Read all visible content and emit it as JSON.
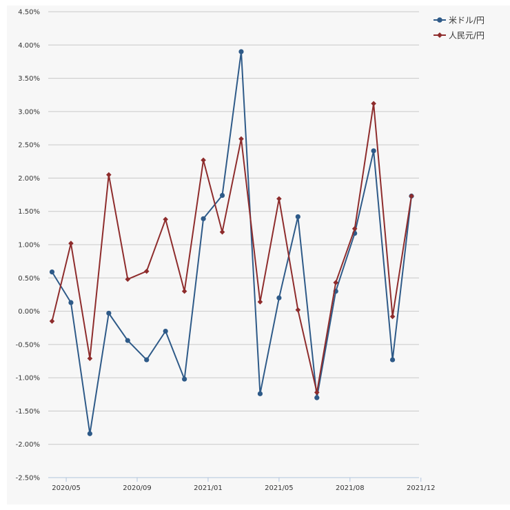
{
  "chart_data": {
    "type": "line",
    "title": "",
    "xlabel": "",
    "ylabel": "",
    "ylim": [
      -2.5,
      4.5
    ],
    "y_ticks": [
      "4.50%",
      "4.00%",
      "3.50%",
      "3.00%",
      "2.50%",
      "2.00%",
      "1.50%",
      "1.00%",
      "0.50%",
      "0.00%",
      "-0.50%",
      "-1.00%",
      "-1.50%",
      "-2.00%",
      "-2.50%"
    ],
    "y_tick_values": [
      4.5,
      4.0,
      3.5,
      3.0,
      2.5,
      2.0,
      1.5,
      1.0,
      0.5,
      0.0,
      -0.5,
      -1.0,
      -1.5,
      -2.0,
      -2.5
    ],
    "x_ticks": [
      "2020/05",
      "2020/09",
      "2021/01",
      "2021/05",
      "2021/08",
      "2021/12"
    ],
    "x_tick_positions": [
      0.75,
      4.5,
      8.25,
      12.0,
      15.75,
      19.5
    ],
    "x_range": [
      -0.2,
      19.4
    ],
    "categories": [
      "2020/04",
      "2020/05",
      "2020/06",
      "2020/07",
      "2020/08",
      "2020/09",
      "2020/10",
      "2020/11",
      "2020/12",
      "2021/01",
      "2021/02",
      "2021/03",
      "2021/04",
      "2021/05",
      "2021/06",
      "2021/07",
      "2021/08",
      "2021/09",
      "2021/10",
      "2021/11"
    ],
    "legend_position": "top-right",
    "series": [
      {
        "name": "米ドル/円",
        "color": "#2e5a88",
        "marker": "circle",
        "values": [
          0.59,
          0.13,
          -1.84,
          -0.03,
          -0.44,
          -0.73,
          -0.3,
          -1.02,
          1.39,
          1.74,
          3.9,
          -1.24,
          0.2,
          1.42,
          -1.3,
          0.3,
          1.17,
          2.41,
          -0.73,
          1.73
        ]
      },
      {
        "name": "人民元/円",
        "color": "#8e2c2c",
        "marker": "diamond",
        "values": [
          -0.15,
          1.02,
          -0.71,
          2.05,
          0.48,
          0.6,
          1.38,
          0.3,
          2.27,
          1.19,
          2.59,
          0.14,
          1.69,
          0.02,
          -1.22,
          0.43,
          1.24,
          3.12,
          -0.08,
          1.73
        ]
      }
    ]
  }
}
